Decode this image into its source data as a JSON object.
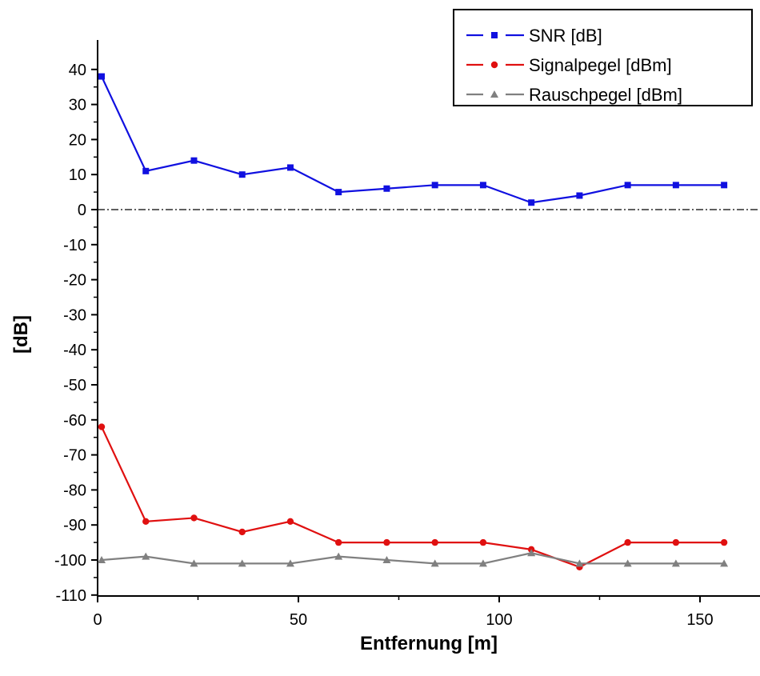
{
  "chart_data": {
    "type": "line",
    "xlabel": "Entfernung [m]",
    "ylabel": "[dB]",
    "xlim": [
      0,
      165
    ],
    "ylim": [
      -110,
      45
    ],
    "x_ticks": [
      0,
      50,
      100,
      150
    ],
    "y_ticks": [
      40,
      30,
      20,
      10,
      0,
      -10,
      -20,
      -30,
      -40,
      -50,
      -60,
      -70,
      -80,
      -90,
      -100,
      -110
    ],
    "reference_line": 0,
    "legend_position": "top-right",
    "x": [
      1,
      12,
      24,
      36,
      48,
      60,
      72,
      84,
      96,
      108,
      120,
      132,
      144,
      156
    ],
    "series": [
      {
        "name": "SNR [dB]",
        "color": "#1010e0",
        "marker": "square",
        "values": [
          38,
          11,
          14,
          10,
          12,
          5,
          6,
          7,
          7,
          2,
          4,
          7,
          7,
          7
        ]
      },
      {
        "name": "Signalpegel [dBm]",
        "color": "#e01010",
        "marker": "circle",
        "values": [
          -62,
          -89,
          -88,
          -92,
          -89,
          -95,
          -95,
          -95,
          -95,
          -97,
          -102,
          -95,
          -95,
          -95
        ]
      },
      {
        "name": "Rauschpegel [dBm]",
        "color": "#808080",
        "marker": "triangle",
        "values": [
          -100,
          -99,
          -101,
          -101,
          -101,
          -99,
          -100,
          -101,
          -101,
          -98,
          -101,
          -101,
          -101,
          -101
        ]
      }
    ]
  }
}
